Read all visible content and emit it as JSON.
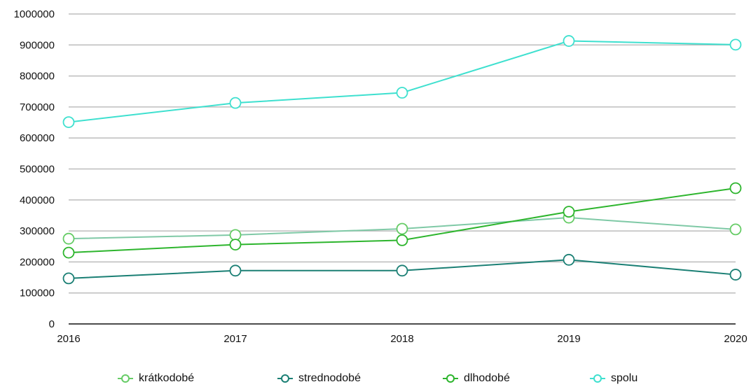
{
  "chart_data": {
    "type": "line",
    "title": "",
    "xlabel": "",
    "ylabel": "",
    "categories": [
      "2016",
      "2017",
      "2018",
      "2019",
      "2020"
    ],
    "ylim": [
      0,
      1000000
    ],
    "yticks": [
      "0",
      "100000",
      "200000",
      "300000",
      "400000",
      "500000",
      "600000",
      "700000",
      "800000",
      "900000",
      "1000000"
    ],
    "grid": true,
    "legend_position": "bottom",
    "series": [
      {
        "name": "krátkodobé",
        "color": "#66CC66",
        "line_color": "#7FC9A6",
        "values": [
          275000,
          287000,
          307000,
          343000,
          305000
        ]
      },
      {
        "name": "strednodobé",
        "color": "#1A7F74",
        "line_color": "#1A7F74",
        "values": [
          147000,
          172000,
          172000,
          207000,
          159000
        ]
      },
      {
        "name": "dlhodobé",
        "color": "#2DB52D",
        "line_color": "#2DB52D",
        "values": [
          230000,
          256000,
          270000,
          362000,
          438000
        ]
      },
      {
        "name": "spolu",
        "color": "#3EE0CF",
        "line_color": "#3EE0CF",
        "values": [
          651000,
          713000,
          746000,
          913000,
          901000
        ]
      }
    ]
  }
}
